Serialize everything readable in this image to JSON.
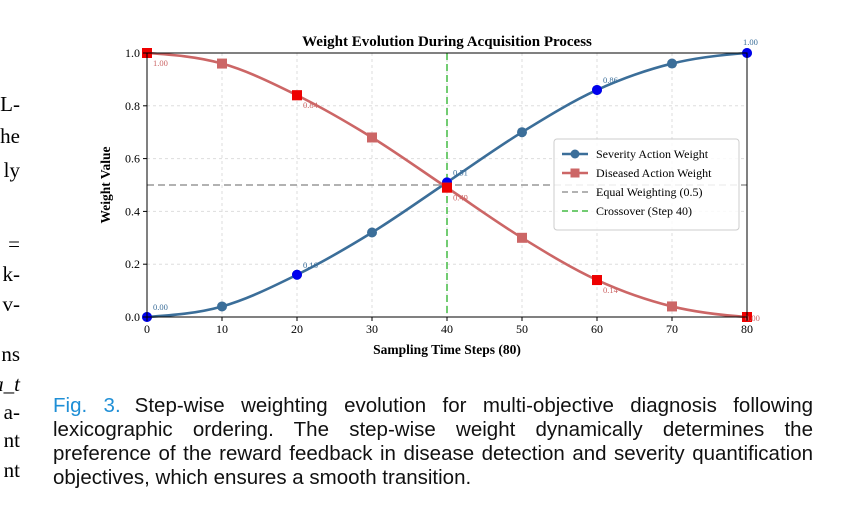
{
  "left_column_fragments": [
    "L-",
    "he",
    "ly",
    "=",
    "k-",
    "v-",
    "ns",
    "a_t",
    "a-",
    "nt",
    "nt"
  ],
  "caption": {
    "label": "Fig. 3.",
    "text": "Step-wise weighting evolution for multi-objective diagnosis following lexicographic ordering. The step-wise weight dynamically determines the preference of the reward feedback in disease detection and severity quantification objectives, which ensures a smooth transition."
  },
  "chart_data": {
    "type": "line",
    "title": "Weight Evolution During Acquisition Process",
    "xlabel": "Sampling Time Steps (80)",
    "ylabel": "Weight Value",
    "xlim": [
      0,
      80
    ],
    "ylim": [
      0,
      1.0
    ],
    "xticks": [
      0,
      10,
      20,
      30,
      40,
      50,
      60,
      70,
      80
    ],
    "yticks": [
      0.0,
      0.2,
      0.4,
      0.6,
      0.8,
      1.0
    ],
    "grid": true,
    "legend_position": "center-right",
    "series": [
      {
        "name": "Severity Action Weight",
        "color": "#3b6e99",
        "marker": "circle",
        "x": [
          0,
          10,
          20,
          30,
          40,
          50,
          60,
          70,
          80
        ],
        "y": [
          0.0,
          0.04,
          0.16,
          0.32,
          0.51,
          0.7,
          0.86,
          0.96,
          1.0
        ],
        "highlight_color": "#0000ee",
        "highlights": [
          {
            "x": 0,
            "y": 0.0,
            "label": "0.00"
          },
          {
            "x": 20,
            "y": 0.16,
            "label": "0.16"
          },
          {
            "x": 40,
            "y": 0.51,
            "label": "0.51"
          },
          {
            "x": 60,
            "y": 0.86,
            "label": "0.86"
          },
          {
            "x": 80,
            "y": 1.0,
            "label": "1.00"
          }
        ]
      },
      {
        "name": "Diseased Action Weight",
        "color": "#cc6666",
        "marker": "square",
        "x": [
          0,
          10,
          20,
          30,
          40,
          50,
          60,
          70,
          80
        ],
        "y": [
          1.0,
          0.96,
          0.84,
          0.68,
          0.49,
          0.3,
          0.14,
          0.04,
          0.0
        ],
        "highlight_color": "#ee0000",
        "highlights": [
          {
            "x": 0,
            "y": 1.0,
            "label": "1.00"
          },
          {
            "x": 20,
            "y": 0.84,
            "label": "0.84"
          },
          {
            "x": 40,
            "y": 0.49,
            "label": "0.49"
          },
          {
            "x": 60,
            "y": 0.14,
            "label": "0.14"
          },
          {
            "x": 80,
            "y": 0.0,
            "label": "0.00"
          }
        ]
      }
    ],
    "reference_lines": [
      {
        "name": "Equal Weighting (0.5)",
        "orientation": "horizontal",
        "value": 0.5,
        "color": "#999999",
        "style": "dashed"
      },
      {
        "name": "Crossover (Step 40)",
        "orientation": "vertical",
        "value": 40,
        "color": "#44bb44",
        "style": "dashed"
      }
    ]
  }
}
